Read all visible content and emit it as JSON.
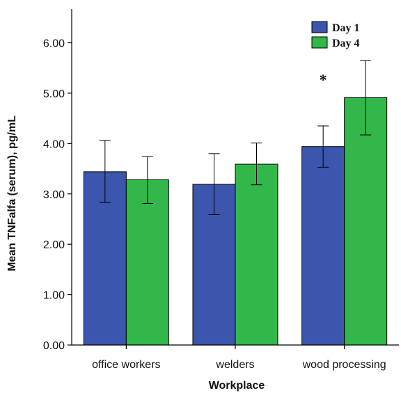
{
  "chart_data": {
    "type": "bar",
    "title": "",
    "xlabel": "Workplace",
    "ylabel": "Mean TNFalfa (serum), pg/mL",
    "ylim": [
      0,
      6.67
    ],
    "yticks": [
      "0.00",
      "1.00",
      "2.00",
      "3.00",
      "4.00",
      "5.00",
      "6.00"
    ],
    "categories": [
      "office workers",
      "welders",
      "wood processing"
    ],
    "series": [
      {
        "name": "Day 1",
        "color": "#3C55AD",
        "values": [
          3.44,
          3.19,
          3.94
        ],
        "err_low": [
          2.83,
          2.59,
          3.53
        ],
        "err_high": [
          4.06,
          3.8,
          4.35
        ]
      },
      {
        "name": "Day 4",
        "color": "#32B74A",
        "values": [
          3.28,
          3.59,
          4.91
        ],
        "err_low": [
          2.81,
          3.18,
          4.17
        ],
        "err_high": [
          3.74,
          4.01,
          5.65
        ]
      }
    ],
    "annotations": [
      {
        "text": "*",
        "category_index": 2
      }
    ],
    "legend": {
      "placement": "top-right"
    },
    "grid": false
  }
}
